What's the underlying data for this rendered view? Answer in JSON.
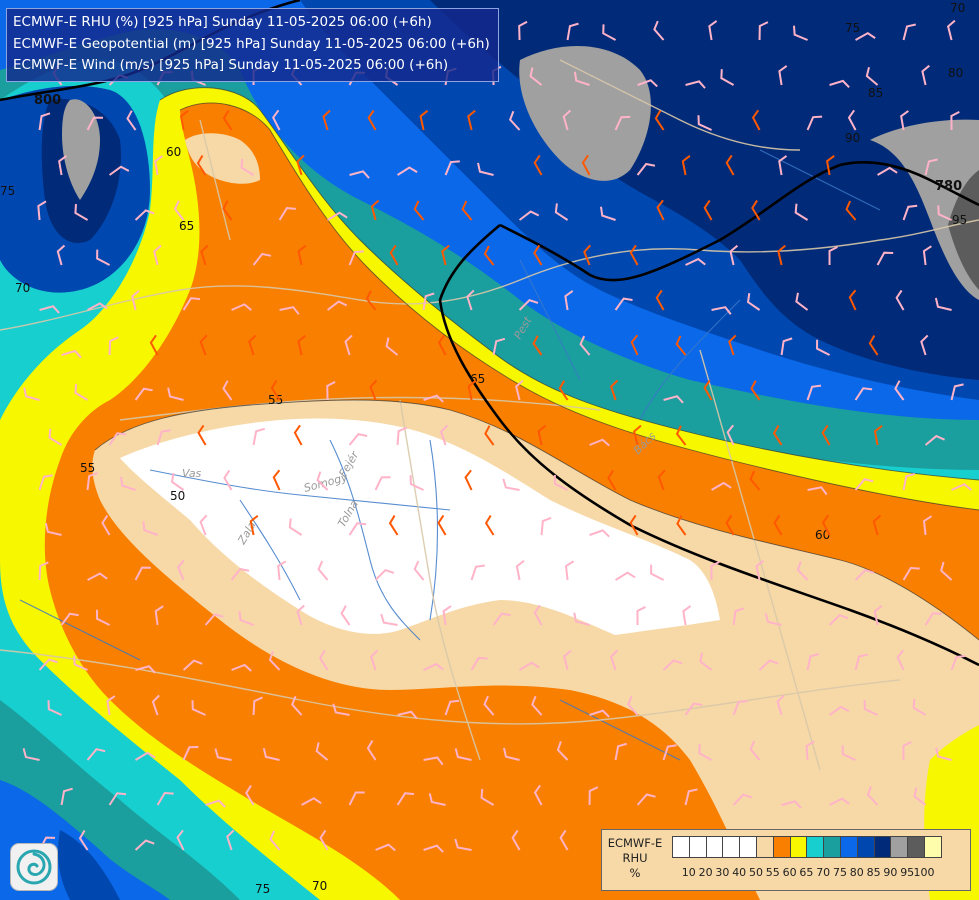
{
  "header": {
    "lines": [
      "ECMWF-E RHU (%) [925 hPa] Sunday 11-05-2025 06:00 (+6h)",
      "ECMWF-E Geopotential (m) [925 hPa] Sunday 11-05-2025 06:00 (+6h)",
      "ECMWF-E Wind (m/s) [925 hPa] Sunday 11-05-2025 06:00 (+6h)"
    ]
  },
  "legend": {
    "title_lines": [
      "ECMWF-E",
      "RHU",
      "%"
    ],
    "bins": [
      {
        "color": "#ffffff"
      },
      {
        "color": "#ffffff"
      },
      {
        "color": "#ffffff"
      },
      {
        "color": "#ffffff"
      },
      {
        "color": "#ffffff"
      },
      {
        "color": "#f7d9a8"
      },
      {
        "color": "#f87f00"
      },
      {
        "color": "#f7f700"
      },
      {
        "color": "#18cfcf"
      },
      {
        "color": "#1a9e9e"
      },
      {
        "color": "#0b68e8"
      },
      {
        "color": "#0048b0"
      },
      {
        "color": "#012a78"
      },
      {
        "color": "#a0a0a0"
      },
      {
        "color": "#5c5c5c"
      },
      {
        "color": "#fdfdab"
      }
    ],
    "ticks": [
      "10",
      "20",
      "30",
      "40",
      "50",
      "55",
      "60",
      "65",
      "70",
      "75",
      "80",
      "85",
      "90",
      "95",
      "100"
    ]
  },
  "contour_labels": {
    "rhu": [
      "75",
      "70",
      "70",
      "75",
      "80",
      "85",
      "90",
      "95",
      "60",
      "65",
      "55",
      "50",
      "65",
      "60",
      "55",
      "75",
      "70"
    ],
    "geopotential": [
      "800",
      "780"
    ]
  },
  "river_labels": [
    "Vas",
    "Zala",
    "Somogy",
    "Fejér",
    "Tolna",
    "Pest",
    "Bács"
  ],
  "colors": {
    "white_zone": "#ffffff",
    "rhu_55": "#f7d9a8",
    "rhu_60": "#f87f00",
    "rhu_65": "#f7f700",
    "rhu_70": "#18cfcf",
    "rhu_75": "#1a9e9e",
    "rhu_80": "#0b68e8",
    "rhu_85": "#0048b0",
    "rhu_90": "#012a78",
    "rhu_95": "#a0a0a0",
    "rhu_100": "#5c5c5c",
    "geopotential_line": "#000000",
    "border_line": "#d8c8a8",
    "river_line": "#3a78c8",
    "wind_barb_orange": "#ff5800",
    "wind_barb_pink": "#ffb3c8"
  },
  "icons": {
    "logo": "ecmwf-swirl-logo-icon"
  }
}
